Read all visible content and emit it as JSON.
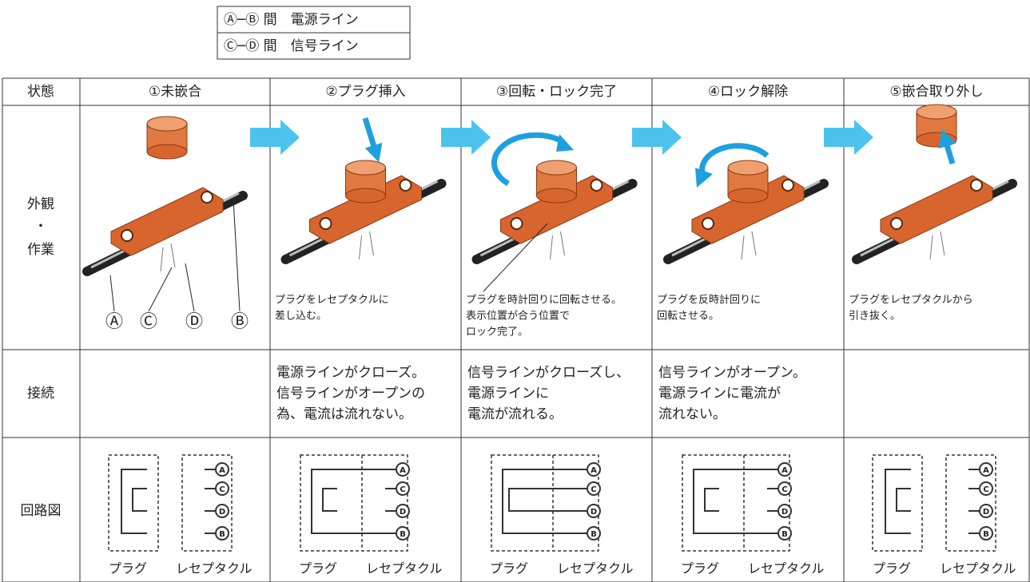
{
  "legend": [
    "Ⓐ─Ⓑ 間　電源ライン",
    "Ⓒ─Ⓓ 間　信号ライン"
  ],
  "table": {
    "corner": "状態",
    "row_labels": {
      "appearance": [
        "外観",
        "・",
        "作業"
      ],
      "connection": "接続",
      "circuit": "回路図"
    },
    "markers": [
      "Ⓐ",
      "Ⓒ",
      "Ⓓ",
      "Ⓑ"
    ],
    "pins": [
      "A",
      "C",
      "D",
      "B"
    ],
    "circuit_labels": [
      "プラグ",
      "レセプタクル"
    ],
    "columns": [
      {
        "state": "①未嵌合"
      },
      {
        "state": "②プラグ挿入",
        "caption": [
          "プラグをレセプタクルに",
          "差し込む。"
        ],
        "connection": [
          "電源ラインがクローズ。",
          "信号ラインがオープンの",
          "為、電流は流れない。"
        ]
      },
      {
        "state": "③回転・ロック完了",
        "caption": [
          "プラグを時計回りに回転させる。",
          "表示位置が合う位置で",
          "ロック完了。"
        ],
        "connection": [
          "信号ラインがクローズし、",
          "電源ラインに",
          "電流が流れる。"
        ]
      },
      {
        "state": "④ロック解除",
        "caption": [
          "プラグを反時計回りに",
          "回転させる。"
        ],
        "connection": [
          "信号ラインがオープン。",
          "電源ラインに電流が",
          "流れない。"
        ]
      },
      {
        "state": "⑤嵌合取り外し",
        "caption": [
          "プラグをレセプタクルから",
          "引き抜く。"
        ]
      }
    ]
  }
}
